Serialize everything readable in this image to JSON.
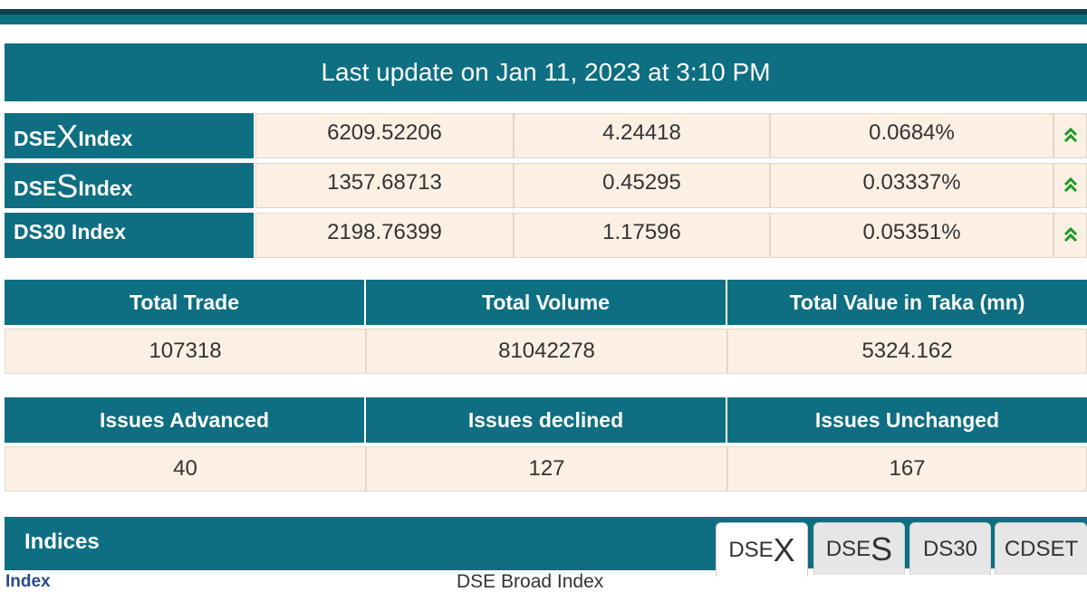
{
  "update_text": "Last update on Jan 11, 2023 at 3:10 PM",
  "indices": [
    {
      "prefix": "DSE",
      "big": "X",
      "suffix": " Index",
      "value": "6209.52206",
      "change": "4.24418",
      "percent": "0.0684%",
      "arrow": "double-chevron-up-icon"
    },
    {
      "prefix": "DSE",
      "big": "S",
      "suffix": " Index",
      "value": "1357.68713",
      "change": "0.45295",
      "percent": "0.03337%",
      "arrow": "double-chevron-up-icon"
    },
    {
      "prefix": "DS30 Index",
      "big": "",
      "suffix": "",
      "value": "2198.76399",
      "change": "1.17596",
      "percent": "0.05351%",
      "arrow": "double-chevron-up-icon"
    }
  ],
  "totals": {
    "headers": [
      "Total Trade",
      "Total Volume",
      "Total Value in Taka (mn)"
    ],
    "values": [
      "107318",
      "81042278",
      "5324.162"
    ]
  },
  "issues": {
    "headers": [
      "Issues Advanced",
      "Issues declined",
      "Issues Unchanged"
    ],
    "values": [
      "40",
      "127",
      "167"
    ]
  },
  "indices_panel": {
    "title": "Indices",
    "tabs": [
      {
        "prefix": "DSE",
        "big": "X"
      },
      {
        "prefix": "DSE",
        "big": "S"
      },
      {
        "prefix": "DS30",
        "big": ""
      },
      {
        "prefix": "CDSET",
        "big": ""
      }
    ],
    "index_label": "Index",
    "index_desc": "DSE Broad Index"
  },
  "colors": {
    "teal": "#0e6e82",
    "cell_bg": "#fcefe3",
    "up_arrow": "#1a9b22"
  }
}
